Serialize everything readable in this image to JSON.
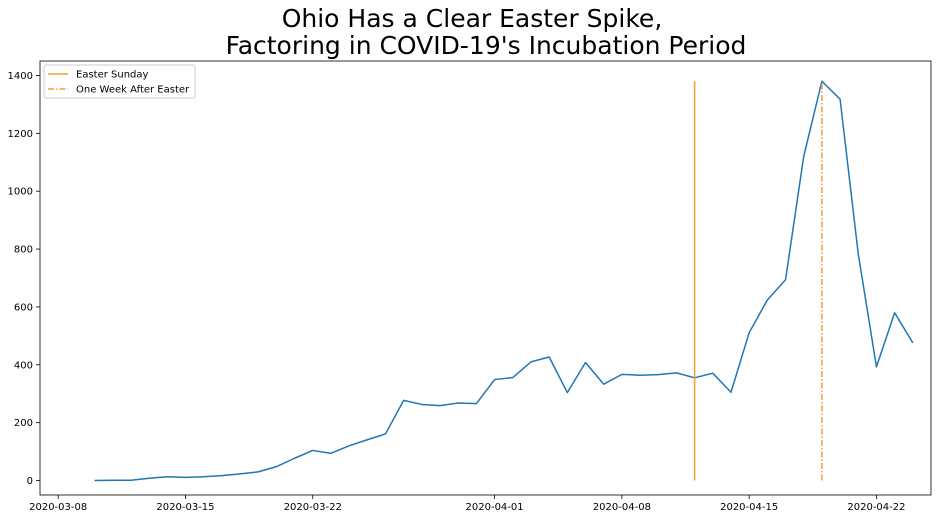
{
  "chart_data": {
    "type": "line",
    "title_lines": [
      "Ohio Has a Clear Easter Spike,",
      "Factoring in COVID-19's Incubation Period"
    ],
    "xlabel": "",
    "ylabel": "",
    "x_axis": {
      "start": "2020-03-07",
      "end": "2020-04-25",
      "tick_labels": [
        "2020-03-08",
        "2020-03-15",
        "2020-03-22",
        "2020-04-01",
        "2020-04-08",
        "2020-04-15",
        "2020-04-22"
      ],
      "tick_dates": [
        "2020-03-08",
        "2020-03-15",
        "2020-03-22",
        "2020-04-01",
        "2020-04-08",
        "2020-04-15",
        "2020-04-22"
      ]
    },
    "ylim": [
      -50,
      1450
    ],
    "y_ticks": [
      0,
      200,
      400,
      600,
      800,
      1000,
      1200,
      1400
    ],
    "y_tick_labels": [
      "0",
      "200",
      "400",
      "600",
      "800",
      "1000",
      "1200",
      "1400"
    ],
    "grid": false,
    "legend_position": "top-left",
    "series": [
      {
        "color": "#1f77b4",
        "dates": [
          "2020-03-10",
          "2020-03-11",
          "2020-03-12",
          "2020-03-13",
          "2020-03-14",
          "2020-03-15",
          "2020-03-16",
          "2020-03-17",
          "2020-03-18",
          "2020-03-19",
          "2020-03-20",
          "2020-03-21",
          "2020-03-22",
          "2020-03-23",
          "2020-03-24",
          "2020-03-25",
          "2020-03-26",
          "2020-03-27",
          "2020-03-28",
          "2020-03-29",
          "2020-03-30",
          "2020-03-31",
          "2020-04-01",
          "2020-04-02",
          "2020-04-03",
          "2020-04-04",
          "2020-04-05",
          "2020-04-06",
          "2020-04-07",
          "2020-04-08",
          "2020-04-09",
          "2020-04-10",
          "2020-04-11",
          "2020-04-12",
          "2020-04-13",
          "2020-04-14",
          "2020-04-15",
          "2020-04-16",
          "2020-04-17",
          "2020-04-18",
          "2020-04-19",
          "2020-04-20",
          "2020-04-21",
          "2020-04-22",
          "2020-04-23",
          "2020-04-24"
        ],
        "values": [
          0,
          1,
          1,
          8,
          13,
          11,
          13,
          17,
          23,
          30,
          48,
          77,
          104,
          94,
          120,
          141,
          161,
          277,
          263,
          259,
          268,
          266,
          349,
          356,
          410,
          427,
          304,
          408,
          333,
          367,
          364,
          366,
          372,
          355,
          371,
          305,
          511,
          624,
          694,
          1120,
          1380,
          1318,
          783,
          393,
          580,
          476
        ]
      }
    ],
    "vlines": [
      {
        "label": "Easter Sunday",
        "date": "2020-04-12",
        "y_range": [
          0,
          1380
        ],
        "color": "#f0a030",
        "style": "solid"
      },
      {
        "label": "One Week After Easter",
        "date": "2020-04-19",
        "y_range": [
          0,
          1380
        ],
        "color": "#f0a030",
        "style": "dashdot"
      }
    ]
  }
}
